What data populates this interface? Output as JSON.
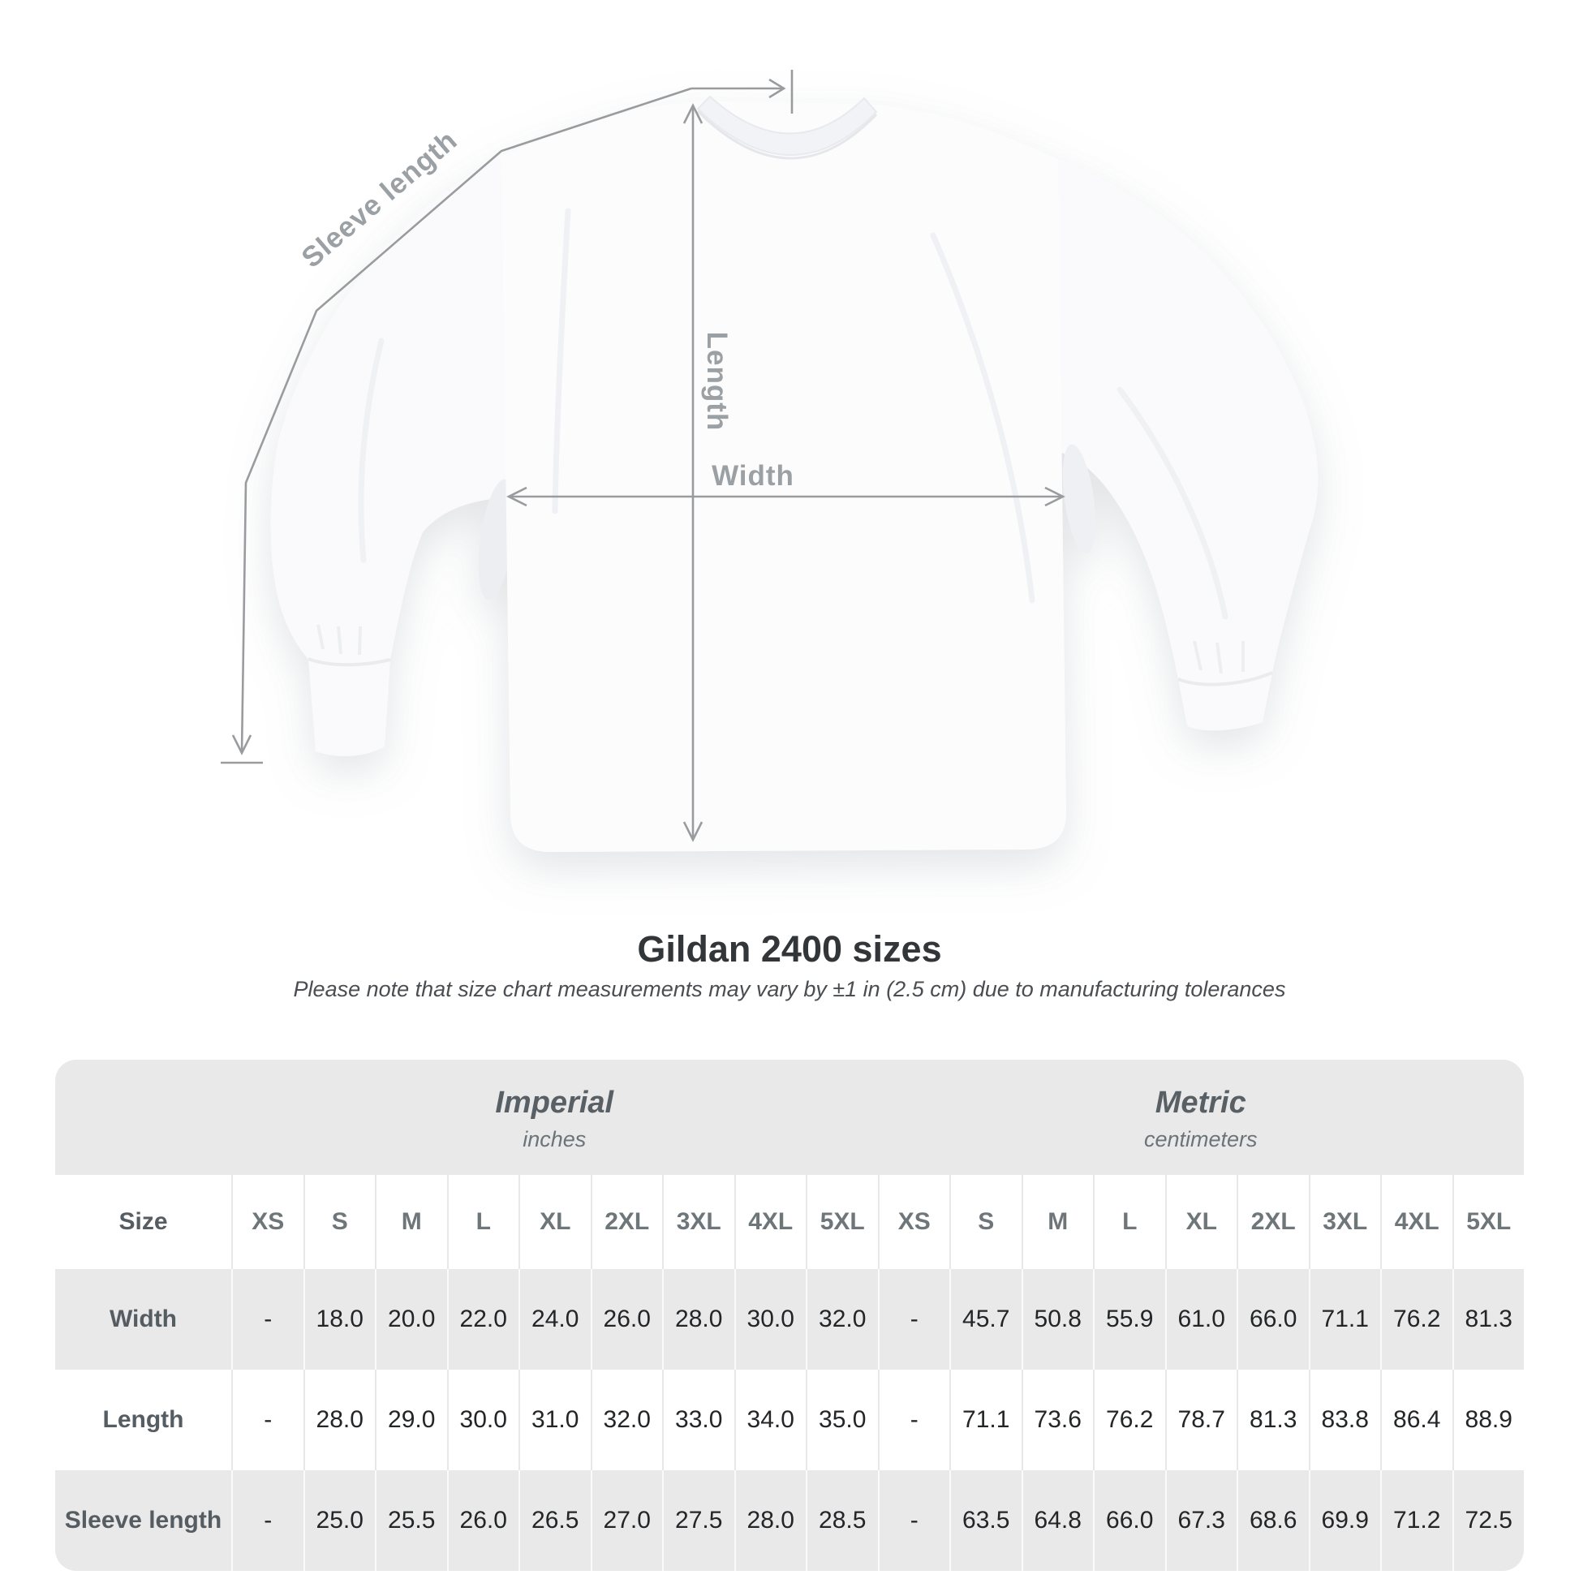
{
  "diagram": {
    "sleeve_length_label": "Sleeve length",
    "length_label": "Length",
    "width_label": "Width"
  },
  "heading": {
    "title": "Gildan 2400 sizes",
    "subtitle": "Please note that size chart measurements may vary by ±1 in (2.5 cm) due to manufacturing tolerances"
  },
  "size_table": {
    "unit_groups": [
      {
        "label": "Imperial",
        "unit": "inches"
      },
      {
        "label": "Metric",
        "unit": "centimeters"
      }
    ],
    "corner_header": "Size",
    "sizes": [
      "XS",
      "S",
      "M",
      "L",
      "XL",
      "2XL",
      "3XL",
      "4XL",
      "5XL"
    ],
    "rows": [
      {
        "label": "Width",
        "imperial": [
          "-",
          "18.0",
          "20.0",
          "22.0",
          "24.0",
          "26.0",
          "28.0",
          "30.0",
          "32.0"
        ],
        "metric": [
          "-",
          "45.7",
          "50.8",
          "55.9",
          "61.0",
          "66.0",
          "71.1",
          "76.2",
          "81.3"
        ]
      },
      {
        "label": "Length",
        "imperial": [
          "-",
          "28.0",
          "29.0",
          "30.0",
          "31.0",
          "32.0",
          "33.0",
          "34.0",
          "35.0"
        ],
        "metric": [
          "-",
          "71.1",
          "73.6",
          "76.2",
          "78.7",
          "81.3",
          "83.8",
          "86.4",
          "88.9"
        ]
      },
      {
        "label": "Sleeve length",
        "imperial": [
          "-",
          "25.0",
          "25.5",
          "26.0",
          "26.5",
          "27.0",
          "27.5",
          "28.0",
          "28.5"
        ],
        "metric": [
          "-",
          "63.5",
          "64.8",
          "66.0",
          "67.3",
          "68.6",
          "69.9",
          "71.2",
          "72.5"
        ]
      }
    ]
  },
  "chart_data": {
    "type": "table",
    "title": "Gildan 2400 sizes",
    "units": {
      "imperial": "inches",
      "metric": "centimeters"
    },
    "sizes": [
      "XS",
      "S",
      "M",
      "L",
      "XL",
      "2XL",
      "3XL",
      "4XL",
      "5XL"
    ],
    "measurements": {
      "Width": {
        "imperial": [
          null,
          18.0,
          20.0,
          22.0,
          24.0,
          26.0,
          28.0,
          30.0,
          32.0
        ],
        "metric": [
          null,
          45.7,
          50.8,
          55.9,
          61.0,
          66.0,
          71.1,
          76.2,
          81.3
        ]
      },
      "Length": {
        "imperial": [
          null,
          28.0,
          29.0,
          30.0,
          31.0,
          32.0,
          33.0,
          34.0,
          35.0
        ],
        "metric": [
          null,
          71.1,
          73.6,
          76.2,
          78.7,
          81.3,
          83.8,
          86.4,
          88.9
        ]
      },
      "Sleeve length": {
        "imperial": [
          null,
          25.0,
          25.5,
          26.0,
          26.5,
          27.0,
          27.5,
          28.0,
          28.5
        ],
        "metric": [
          null,
          63.5,
          64.8,
          66.0,
          67.3,
          68.6,
          69.9,
          71.2,
          72.5
        ]
      }
    }
  },
  "colors": {
    "measurement_line": "#999b9e",
    "measurement_label": "#9aa0a4",
    "table_gray": "#e9e9ea",
    "title_text": "#323639",
    "value_text": "#232527"
  }
}
